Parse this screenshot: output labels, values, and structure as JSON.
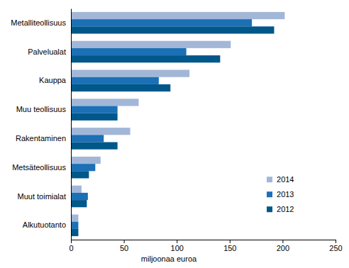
{
  "chart_data": {
    "type": "bar",
    "orientation": "horizontal",
    "categories": [
      "Metalliteollisuus",
      "Palvelualat",
      "Kauppa",
      "Muu teollisuus",
      "Rakentaminen",
      "Metsäteollisuus",
      "Muut toimialat",
      "Alkutuotanto"
    ],
    "series": [
      {
        "name": "2014",
        "color": "#a2b7d8",
        "values": [
          202,
          151,
          112,
          64,
          56,
          28,
          10,
          7
        ]
      },
      {
        "name": "2013",
        "color": "#1b70b6",
        "values": [
          171,
          109,
          83,
          44,
          31,
          23,
          16,
          7
        ]
      },
      {
        "name": "2012",
        "color": "#00578a",
        "values": [
          192,
          141,
          94,
          44,
          44,
          17,
          15,
          7
        ]
      }
    ],
    "xlabel": "miljoonaa euroa",
    "xlim": [
      0,
      250
    ],
    "xticks": [
      0,
      50,
      100,
      150,
      200,
      250
    ],
    "grid": false,
    "legend": "lower right"
  }
}
